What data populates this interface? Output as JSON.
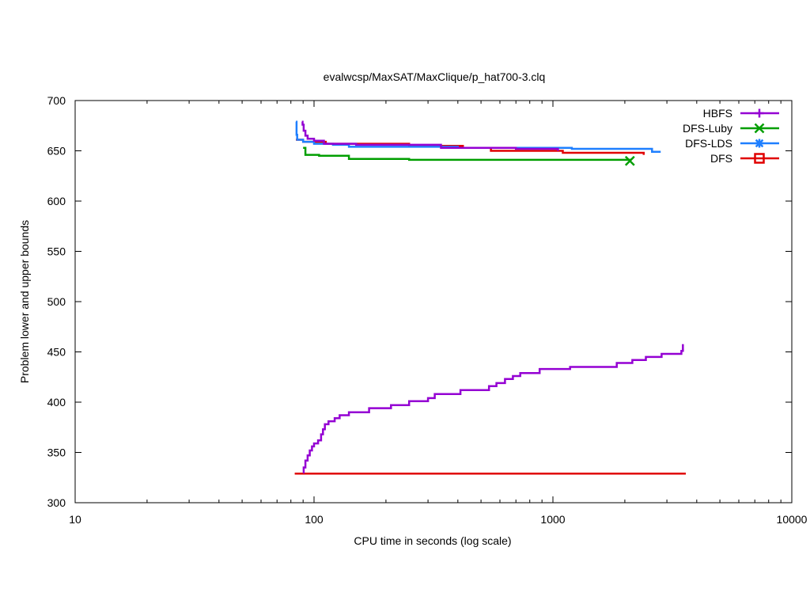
{
  "chart_data": {
    "type": "line",
    "title": "evalwcsp/MaxSAT/MaxClique/p_hat700-3.clq",
    "xlabel": "CPU time in seconds (log scale)",
    "ylabel": "Problem lower and upper bounds",
    "x_scale": "log",
    "xlim": [
      10,
      10000
    ],
    "ylim": [
      300,
      700
    ],
    "x_ticks": [
      10,
      100,
      1000,
      10000
    ],
    "x_tick_labels": [
      "10",
      "100",
      "1000",
      "10000"
    ],
    "y_ticks": [
      300,
      350,
      400,
      450,
      500,
      550,
      600,
      650,
      700
    ],
    "y_tick_labels": [
      "300",
      "350",
      "400",
      "450",
      "500",
      "550",
      "600",
      "650",
      "700"
    ],
    "grid": false,
    "legend_position": "top-right",
    "series": [
      {
        "name": "HBFS",
        "color": "#9400d3",
        "marker": "plus",
        "upper": [
          [
            89,
            679
          ],
          [
            89.5,
            676
          ],
          [
            90.5,
            670
          ],
          [
            92,
            665
          ],
          [
            94,
            662
          ],
          [
            100,
            660
          ],
          [
            110,
            657
          ],
          [
            150,
            656
          ],
          [
            340,
            655
          ],
          [
            340,
            653
          ],
          [
            700,
            652
          ],
          [
            1050,
            651
          ],
          [
            1050,
            650
          ]
        ],
        "lower": [
          [
            90,
            330
          ],
          [
            90.5,
            335
          ],
          [
            92,
            342
          ],
          [
            94,
            347
          ],
          [
            96,
            352
          ],
          [
            98,
            356
          ],
          [
            100,
            359
          ],
          [
            104,
            362
          ],
          [
            107,
            368
          ],
          [
            109,
            373
          ],
          [
            111,
            378
          ],
          [
            115,
            381
          ],
          [
            122,
            384
          ],
          [
            128,
            387
          ],
          [
            140,
            390
          ],
          [
            170,
            394
          ],
          [
            210,
            397
          ],
          [
            250,
            401
          ],
          [
            300,
            404
          ],
          [
            320,
            408
          ],
          [
            410,
            412
          ],
          [
            540,
            416
          ],
          [
            580,
            419
          ],
          [
            630,
            423
          ],
          [
            680,
            426
          ],
          [
            730,
            429
          ],
          [
            880,
            433
          ],
          [
            1180,
            435
          ],
          [
            1850,
            439
          ],
          [
            2150,
            442
          ],
          [
            2450,
            445
          ],
          [
            2850,
            448
          ],
          [
            3450,
            451
          ],
          [
            3500,
            453
          ]
        ],
        "legend_sample": {
          "x": 3500,
          "y": 453
        }
      },
      {
        "name": "DFS-Luby",
        "color": "#009e00",
        "marker": "x",
        "upper": [
          [
            90,
            653
          ],
          [
            92,
            646
          ],
          [
            105,
            645
          ],
          [
            140,
            642
          ],
          [
            250,
            641
          ],
          [
            2100,
            640
          ]
        ],
        "marker_point": {
          "x": 2100,
          "y": 640
        }
      },
      {
        "name": "DFS-LDS",
        "color": "#1e7fff",
        "marker": "asterisk",
        "upper": [
          [
            84,
            679
          ],
          [
            84.5,
            666
          ],
          [
            85,
            661
          ],
          [
            90,
            659
          ],
          [
            100,
            657
          ],
          [
            120,
            656
          ],
          [
            140,
            654
          ],
          [
            400,
            653
          ],
          [
            1200,
            652
          ],
          [
            2600,
            649
          ],
          [
            2800,
            648
          ]
        ]
      },
      {
        "name": "DFS",
        "color": "#e00000",
        "marker": "square",
        "upper": [
          [
            84,
            661
          ],
          [
            90,
            659
          ],
          [
            112,
            657
          ],
          [
            250,
            655
          ],
          [
            420,
            653
          ],
          [
            550,
            650
          ],
          [
            1100,
            648
          ],
          [
            2400,
            646
          ]
        ],
        "lower": [
          [
            83,
            329
          ],
          [
            3600,
            329
          ]
        ]
      }
    ]
  }
}
